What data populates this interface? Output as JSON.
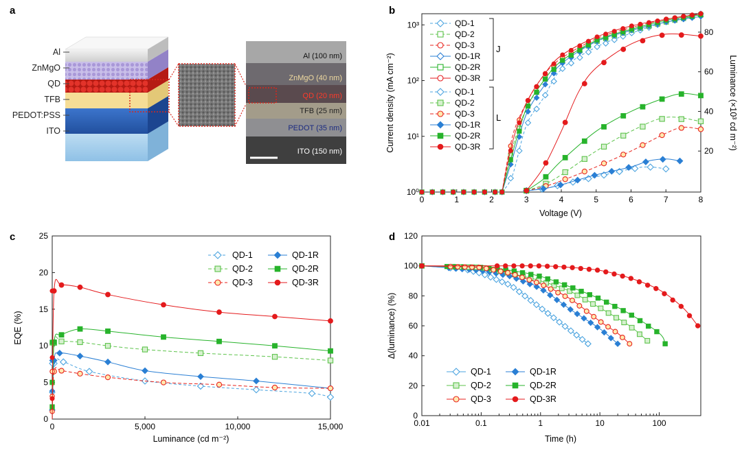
{
  "panel_labels": {
    "a": "a",
    "b": "b",
    "c": "c",
    "d": "d"
  },
  "colors": {
    "qd1": "#4aa3df",
    "qd2": "#5cc34a",
    "qd3": "#e8221b",
    "qd3_marker": "#f5a623",
    "qd1r": "#2a7fd4",
    "qd2r": "#27b32b",
    "qd3r": "#e41a1c",
    "zno": "#a998d8",
    "qd_dot": "#d9261c",
    "tfb": "#f6dd96",
    "pedot": "#2f62b8",
    "ito": "#9fcbea",
    "al": "#e4e4e4"
  },
  "panel_a": {
    "layers": [
      "Al",
      "ZnMgO",
      "QD",
      "TFB",
      "PEDOT:PSS",
      "ITO"
    ],
    "tem_labels": [
      "Al (100 nm)",
      "ZnMgO (40 nm)",
      "QD (20 nm)",
      "TFB (25 nm)",
      "PEDOT (35 nm)",
      "ITO (150 nm)"
    ]
  },
  "chart_data": [
    {
      "panel": "b",
      "type": "line",
      "xlabel": "Voltage (V)",
      "ylabel": "Current density (mA cm⁻²)",
      "ylabel_right": "Luminance (×10³ cd m⁻²)",
      "xlim": [
        0,
        8
      ],
      "xticks": [
        "0",
        "1",
        "2",
        "3",
        "4",
        "5",
        "6",
        "7",
        "8"
      ],
      "ylim_log": [
        0,
        3.2
      ],
      "yticks_left": [
        "10⁰",
        "10¹",
        "10²",
        "10³"
      ],
      "ylim_right": [
        0,
        90
      ],
      "yticks_right": [
        "20",
        "40",
        "60",
        "80"
      ],
      "legend_j": [
        "QD-1",
        "QD-2",
        "QD-3",
        "QD-1R",
        "QD-2R",
        "QD-3R"
      ],
      "legend_l": [
        "QD-1",
        "QD-2",
        "QD-3",
        "QD-1R",
        "QD-2R",
        "QD-3R"
      ],
      "group_j": "J",
      "group_l": "L",
      "series_j": [
        {
          "name": "QD-1",
          "x": [
            2.3,
            2.6,
            3.0,
            3.5,
            4.0,
            5.0,
            6.0,
            7.0,
            8.0
          ],
          "log_y": [
            0,
            0.3,
            1.2,
            1.7,
            2.2,
            2.6,
            2.85,
            3.05,
            3.2
          ]
        },
        {
          "name": "QD-2",
          "x": [
            2.3,
            2.6,
            3.0,
            3.5,
            4.0,
            5.0,
            6.0,
            7.0,
            8.0
          ],
          "log_y": [
            0,
            0.8,
            1.5,
            2.0,
            2.35,
            2.7,
            2.9,
            3.05,
            3.18
          ]
        },
        {
          "name": "QD-3",
          "x": [
            2.3,
            2.6,
            3.0,
            3.5,
            4.0,
            5.0,
            6.0,
            7.0,
            8.0
          ],
          "log_y": [
            0,
            1.0,
            1.6,
            2.1,
            2.4,
            2.75,
            2.95,
            3.1,
            3.2
          ]
        },
        {
          "name": "QD-1R",
          "x": [
            2.3,
            2.6,
            3.0,
            3.5,
            4.0,
            5.0,
            6.0,
            7.0,
            8.0
          ],
          "log_y": [
            0,
            0.6,
            1.4,
            1.9,
            2.3,
            2.7,
            2.9,
            3.05,
            3.15
          ]
        },
        {
          "name": "QD-2R",
          "x": [
            2.3,
            2.6,
            3.0,
            3.5,
            4.0,
            5.0,
            6.0,
            7.0,
            8.0
          ],
          "log_y": [
            0,
            0.7,
            1.5,
            2.0,
            2.35,
            2.72,
            2.92,
            3.08,
            3.18
          ]
        },
        {
          "name": "QD-3R",
          "x": [
            2.3,
            2.6,
            3.0,
            3.5,
            4.0,
            5.0,
            6.0,
            7.0,
            8.0
          ],
          "log_y": [
            0,
            0.9,
            1.6,
            2.1,
            2.45,
            2.78,
            2.98,
            3.1,
            3.2
          ]
        }
      ],
      "series_l": [
        {
          "name": "QD-1",
          "x": [
            3.0,
            3.5,
            4.0,
            5.0,
            6.0,
            6.5,
            7.0
          ],
          "y": [
            0,
            1,
            3,
            7,
            11,
            12,
            11
          ]
        },
        {
          "name": "QD-2",
          "x": [
            3.0,
            3.5,
            4.0,
            5.0,
            6.0,
            7.0,
            8.0
          ],
          "y": [
            0,
            3,
            8,
            20,
            30,
            37,
            35
          ]
        },
        {
          "name": "QD-3",
          "x": [
            3.0,
            3.5,
            4.0,
            5.0,
            6.0,
            7.0,
            7.5,
            8.0
          ],
          "y": [
            0,
            2,
            5,
            12,
            20,
            29,
            32,
            31
          ]
        },
        {
          "name": "QD-1R",
          "x": [
            3.0,
            3.5,
            4.0,
            5.0,
            6.0,
            6.5,
            7.0,
            7.4
          ],
          "y": [
            0,
            1,
            3,
            8,
            12,
            15,
            16,
            15
          ]
        },
        {
          "name": "QD-2R",
          "x": [
            3.0,
            3.5,
            4.0,
            5.0,
            6.0,
            7.0,
            7.5,
            8.0
          ],
          "y": [
            0,
            6,
            15,
            30,
            40,
            47,
            49,
            48
          ]
        },
        {
          "name": "QD-3R",
          "x": [
            3.0,
            3.5,
            4.0,
            4.5,
            5.0,
            6.0,
            7.0,
            8.0
          ],
          "y": [
            0,
            12,
            30,
            50,
            62,
            74,
            79,
            78
          ]
        }
      ]
    },
    {
      "panel": "c",
      "type": "line",
      "xlabel": "Luminance (cd m⁻²)",
      "ylabel": "EQE (%)",
      "xlim": [
        0,
        15000
      ],
      "xticks": [
        "0",
        "5,000",
        "10,000",
        "15,000"
      ],
      "ylim": [
        0,
        25
      ],
      "yticks": [
        "0",
        "5",
        "10",
        "15",
        "20",
        "25"
      ],
      "legend": [
        "QD-1",
        "QD-1R",
        "QD-2",
        "QD-2R",
        "QD-3",
        "QD-3R"
      ],
      "series": [
        {
          "name": "QD-1",
          "x": [
            0,
            100,
            600,
            2000,
            5000,
            8000,
            11000,
            14000,
            15000
          ],
          "y": [
            0,
            7.6,
            7.8,
            6.5,
            5.2,
            4.5,
            4.0,
            3.5,
            3.0
          ]
        },
        {
          "name": "QD-1R",
          "x": [
            0,
            100,
            400,
            1500,
            3000,
            5000,
            8000,
            11000,
            15000
          ],
          "y": [
            0,
            8.0,
            9.0,
            8.6,
            7.8,
            6.6,
            5.8,
            5.2,
            4.2
          ]
        },
        {
          "name": "QD-2",
          "x": [
            0,
            100,
            500,
            1500,
            3000,
            5000,
            8000,
            12000,
            15000
          ],
          "y": [
            0,
            10.4,
            10.6,
            10.5,
            10.0,
            9.5,
            9.0,
            8.5,
            8.0
          ]
        },
        {
          "name": "QD-2R",
          "x": [
            0,
            100,
            500,
            1500,
            3000,
            6000,
            9000,
            12000,
            15000
          ],
          "y": [
            0,
            10.5,
            11.5,
            12.3,
            12.0,
            11.2,
            10.6,
            10.0,
            9.3
          ]
        },
        {
          "name": "QD-3",
          "x": [
            0,
            100,
            500,
            1500,
            3000,
            6000,
            9000,
            12000,
            15000
          ],
          "y": [
            0,
            6.5,
            6.6,
            6.2,
            5.7,
            5.0,
            4.7,
            4.3,
            4.2
          ]
        },
        {
          "name": "QD-3R",
          "x": [
            0,
            100,
            500,
            1500,
            3000,
            6000,
            9000,
            12000,
            15000
          ],
          "y": [
            0,
            17.5,
            18.3,
            18.0,
            17.0,
            15.6,
            14.6,
            14.0,
            13.4
          ]
        }
      ]
    },
    {
      "panel": "d",
      "type": "line",
      "xlabel": "Time (h)",
      "ylabel": "Δ(luminance) (%)",
      "xscale": "log",
      "xlim_log10": [
        -2,
        2.7
      ],
      "xticks": [
        "0.01",
        "0.1",
        "1",
        "10",
        "100"
      ],
      "ylim": [
        0,
        120
      ],
      "yticks": [
        "0",
        "20",
        "40",
        "60",
        "80",
        "100",
        "120"
      ],
      "legend": [
        "QD-1",
        "QD-1R",
        "QD-2",
        "QD-2R",
        "QD-3",
        "QD-3R"
      ],
      "series": [
        {
          "name": "QD-1",
          "log_t": [
            -2,
            -1.3,
            -1.0,
            -0.5,
            0.0,
            0.5,
            0.8
          ],
          "y": [
            100,
            98,
            95,
            87,
            72,
            57,
            48
          ]
        },
        {
          "name": "QD-1R",
          "log_t": [
            -2,
            -1.0,
            -0.5,
            0.0,
            0.5,
            1.0,
            1.3
          ],
          "y": [
            100,
            97,
            93,
            85,
            71,
            58,
            48
          ]
        },
        {
          "name": "QD-2",
          "log_t": [
            -2,
            -1.0,
            -0.5,
            0.0,
            0.5,
            1.0,
            1.5,
            1.8
          ],
          "y": [
            100,
            99,
            95,
            90,
            83,
            72,
            60,
            50
          ]
        },
        {
          "name": "QD-2R",
          "log_t": [
            -2,
            -1.0,
            -0.5,
            0.0,
            0.5,
            1.0,
            1.5,
            2.0,
            2.1
          ],
          "y": [
            100,
            99,
            97,
            93,
            86,
            78,
            68,
            55,
            48
          ]
        },
        {
          "name": "QD-3",
          "log_t": [
            -2,
            -1.0,
            -0.5,
            0.0,
            0.5,
            1.0,
            1.3,
            1.5
          ],
          "y": [
            100,
            99,
            95,
            88,
            78,
            63,
            55,
            48
          ]
        },
        {
          "name": "QD-3R",
          "log_t": [
            -2,
            -1.0,
            0.0,
            0.5,
            1.0,
            1.5,
            2.0,
            2.4,
            2.65
          ],
          "y": [
            100,
            100,
            100,
            99,
            97,
            92,
            84,
            72,
            60
          ]
        }
      ]
    }
  ]
}
